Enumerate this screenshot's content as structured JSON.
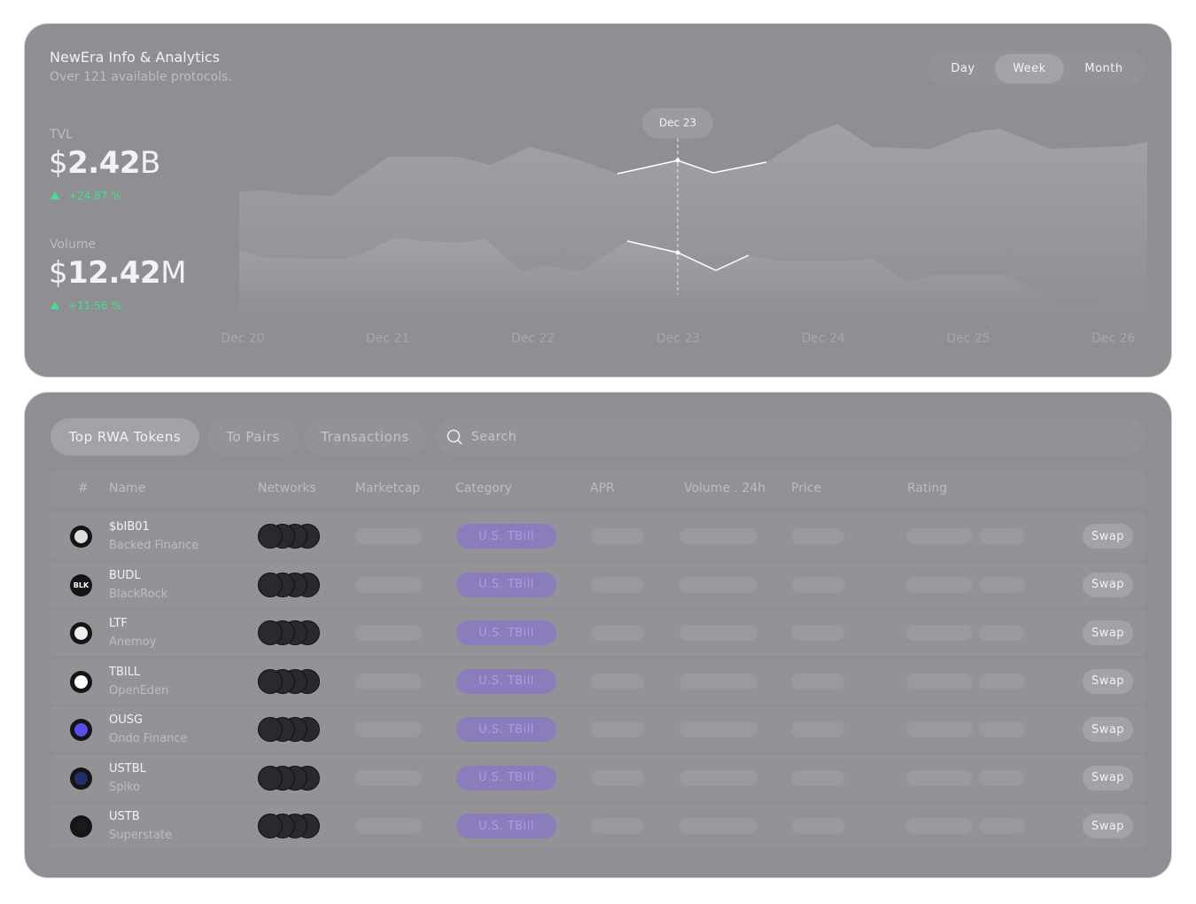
{
  "header": {
    "title": "NewEra Info & Analytics",
    "subtitle": "Over 121 available protocols.",
    "ranges": [
      "Day",
      "Week",
      "Month"
    ],
    "active_range": "Week"
  },
  "stats": [
    {
      "label": "TVL",
      "currency": "$",
      "amount": "2.42",
      "unit": "B",
      "change": "+24.87 %"
    },
    {
      "label": "Volume",
      "currency": "$",
      "amount": "12.42",
      "unit": "M",
      "change": "+11.56 %"
    }
  ],
  "chart": {
    "dates": [
      "Dec 20",
      "Dec 21",
      "Dec 22",
      "Dec 23",
      "Dec 24",
      "Dec 25",
      "Dec 26"
    ],
    "tooltip": "Dec 23"
  },
  "tabs": [
    "Top RWA Tokens",
    "To Pairs",
    "Transactions"
  ],
  "active_tab": "Top RWA Tokens",
  "search_placeholder": "Search",
  "table": {
    "columns": [
      "#",
      "Name",
      "Networks",
      "Marketcap",
      "Category",
      "APR",
      "Volume . 24h",
      "Price",
      "Rating"
    ],
    "rows": [
      {
        "symbol": "$bIB01",
        "issuer": "Backed Finance",
        "category": "U.S. TBill",
        "action": "Swap"
      },
      {
        "symbol": "BUDL",
        "issuer": "BlackRock",
        "icon_label": "BLK",
        "category": "U.S. TBill",
        "action": "Swap"
      },
      {
        "symbol": "LTF",
        "issuer": "Anemoy",
        "category": "U.S. TBill",
        "action": "Swap"
      },
      {
        "symbol": "TBILL",
        "issuer": "OpenEden",
        "category": "U.S. TBill",
        "action": "Swap"
      },
      {
        "symbol": "OUSG",
        "issuer": "Ondo Finance",
        "category": "U.S. TBill",
        "action": "Swap"
      },
      {
        "symbol": "USTBL",
        "issuer": "Spiko",
        "category": "U.S. TBill",
        "action": "Swap"
      },
      {
        "symbol": "USTB",
        "issuer": "Superstate",
        "category": "U.S. TBill",
        "action": "Swap"
      }
    ]
  }
}
